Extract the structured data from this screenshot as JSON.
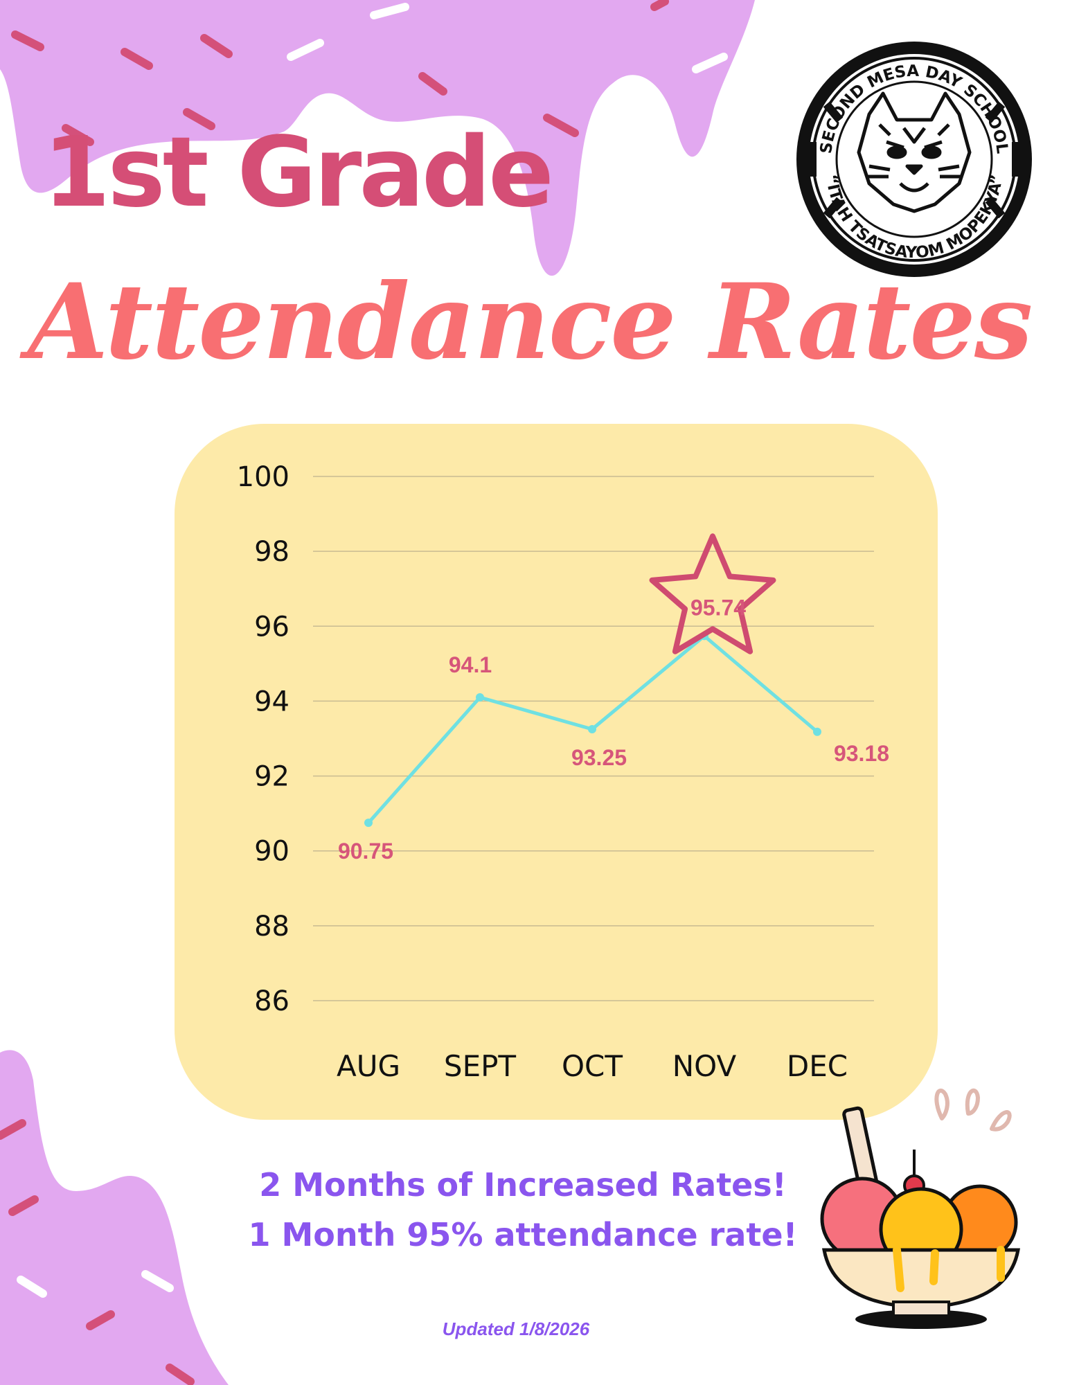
{
  "header": {
    "title_line1": "1st Grade",
    "title_line2": "Attendance Rates"
  },
  "logo": {
    "top_text": "SECOND MESA DAY SCHOOL",
    "bottom_text": "“ITAH TSATSAYOM MOPEKYA”",
    "icon": "bobcat-icon"
  },
  "chart_data": {
    "type": "line",
    "title": "",
    "xlabel": "",
    "ylabel": "",
    "categories": [
      "AUG",
      "SEPT",
      "OCT",
      "NOV",
      "DEC"
    ],
    "series": [
      {
        "values": [
          90.75,
          94.1,
          93.25,
          95.74,
          93.18
        ]
      }
    ],
    "data_labels": [
      "90.75",
      "94.1",
      "93.25",
      "95.74",
      "93.18"
    ],
    "ylim": [
      86,
      100
    ],
    "yticks": [
      86,
      88,
      90,
      92,
      94,
      96,
      98,
      100
    ],
    "grid": true,
    "line_color": "#6fe0e2",
    "label_color": "#d6557a",
    "highlight": {
      "category": "NOV",
      "shape": "star",
      "color": "#cf4b70"
    }
  },
  "notes": {
    "line1": "2 Months of  Increased Rates!",
    "line2": "1 Month 95% attendance rate!",
    "updated": "Updated 1/8/2026"
  },
  "colors": {
    "drip": "#e2a8f0",
    "sprinkle_pink": "#d4507a",
    "sprinkle_white": "#ffffff",
    "panel": "#fdeaa9",
    "title_pink": "#d54e76",
    "title_coral": "#f86f72",
    "note_purple": "#8a55ee"
  },
  "decorations": [
    "sprinkles",
    "ice-cream-sundae-icon"
  ]
}
